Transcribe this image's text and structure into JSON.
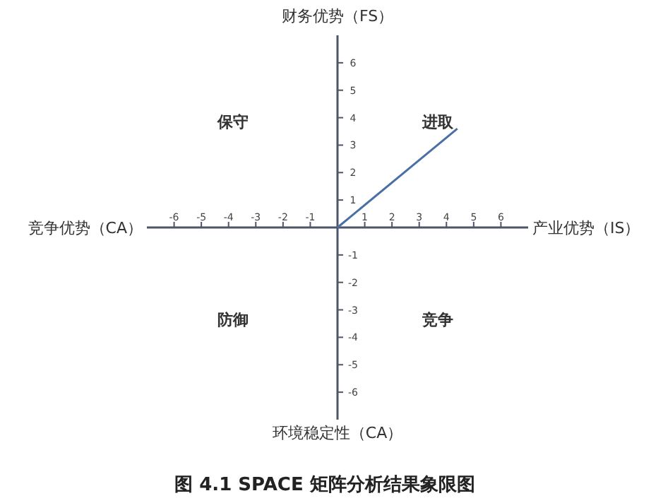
{
  "chart_data": {
    "type": "line",
    "title": "图 4.1 SPACE 矩阵分析结果象限图",
    "xlabel": "产业优势（IS）",
    "ylabel": "财务优势（FS）",
    "annotations": [
      "竞争优势（CA）",
      "环境稳定性（CA）",
      "保守",
      "进取",
      "防御",
      "竞争"
    ],
    "x": [
      0,
      4.4
    ],
    "series": [
      {
        "color": "#4a6fa5",
        "values": [
          0,
          3.6
        ]
      }
    ],
    "xlim": [
      -7,
      7
    ],
    "ylim": [
      -7,
      7
    ],
    "xticks": [
      -6,
      -5,
      -4,
      -3,
      -2,
      -1,
      1,
      2,
      3,
      4,
      5,
      6
    ],
    "yticks": [
      -6,
      -5,
      -4,
      -3,
      -2,
      -1,
      1,
      2,
      3,
      4,
      5,
      6
    ],
    "grid": false,
    "marker": "none",
    "line_style": "solid"
  }
}
